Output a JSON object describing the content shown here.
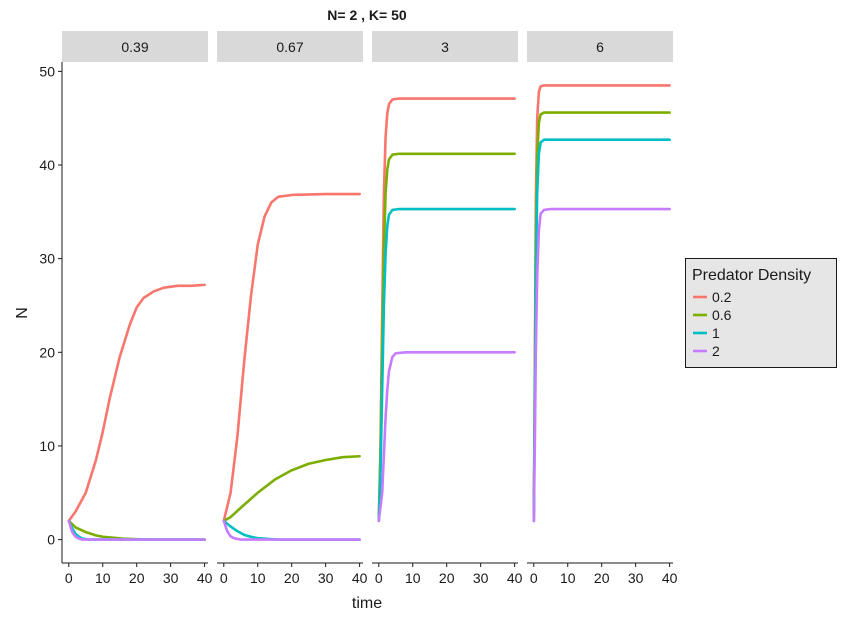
{
  "chart_data": {
    "type": "line",
    "title": "N= 2 , K= 50",
    "xlabel": "time",
    "ylabel": "N",
    "xlim": [
      -2,
      41
    ],
    "ylim": [
      -2.5,
      51
    ],
    "x_ticks": [
      0,
      10,
      20,
      30,
      40
    ],
    "y_ticks": [
      0,
      10,
      20,
      30,
      40,
      50
    ],
    "grid": false,
    "legend": {
      "title": "Predator Density",
      "placement": "right",
      "entries": [
        "0.2",
        "0.6",
        "1",
        "2"
      ]
    },
    "panels": [
      {
        "label": "0.39",
        "series": [
          {
            "name": "0.2",
            "color": "#F8766D",
            "points": [
              [
                0,
                2
              ],
              [
                2,
                3
              ],
              [
                5,
                5
              ],
              [
                8,
                8.5
              ],
              [
                10,
                11.5
              ],
              [
                12,
                15
              ],
              [
                15,
                19.5
              ],
              [
                18,
                23
              ],
              [
                20,
                24.8
              ],
              [
                22,
                25.8
              ],
              [
                25,
                26.5
              ],
              [
                28,
                26.9
              ],
              [
                32,
                27.1
              ],
              [
                36,
                27.1
              ],
              [
                40,
                27.2
              ]
            ]
          },
          {
            "name": "0.6",
            "color": "#7CAE00",
            "points": [
              [
                0,
                2
              ],
              [
                2,
                1.3
              ],
              [
                5,
                0.8
              ],
              [
                8,
                0.45
              ],
              [
                10,
                0.3
              ],
              [
                13,
                0.2
              ],
              [
                16,
                0.1
              ],
              [
                20,
                0.05
              ],
              [
                24,
                0
              ],
              [
                40,
                0
              ]
            ]
          },
          {
            "name": "1",
            "color": "#00BFC4",
            "points": [
              [
                0,
                2
              ],
              [
                1,
                1.2
              ],
              [
                2,
                0.6
              ],
              [
                3,
                0.3
              ],
              [
                4,
                0.1
              ],
              [
                6,
                0
              ],
              [
                40,
                0
              ]
            ]
          },
          {
            "name": "2",
            "color": "#C77CFF",
            "points": [
              [
                0,
                2
              ],
              [
                1,
                0.8
              ],
              [
                2,
                0.3
              ],
              [
                3,
                0.1
              ],
              [
                4,
                0
              ],
              [
                40,
                0
              ]
            ]
          }
        ]
      },
      {
        "label": "0.67",
        "series": [
          {
            "name": "0.2",
            "color": "#F8766D",
            "points": [
              [
                0,
                2
              ],
              [
                2,
                5
              ],
              [
                4,
                11
              ],
              [
                6,
                19
              ],
              [
                8,
                26
              ],
              [
                10,
                31.5
              ],
              [
                12,
                34.5
              ],
              [
                14,
                36
              ],
              [
                16,
                36.6
              ],
              [
                20,
                36.8
              ],
              [
                30,
                36.9
              ],
              [
                40,
                36.9
              ]
            ]
          },
          {
            "name": "0.6",
            "color": "#7CAE00",
            "points": [
              [
                0,
                2
              ],
              [
                2,
                2.4
              ],
              [
                5,
                3.4
              ],
              [
                10,
                5
              ],
              [
                15,
                6.4
              ],
              [
                20,
                7.4
              ],
              [
                25,
                8.1
              ],
              [
                30,
                8.5
              ],
              [
                35,
                8.8
              ],
              [
                40,
                8.9
              ]
            ]
          },
          {
            "name": "1",
            "color": "#00BFC4",
            "points": [
              [
                0,
                2
              ],
              [
                2,
                1.4
              ],
              [
                4,
                0.9
              ],
              [
                6,
                0.5
              ],
              [
                8,
                0.3
              ],
              [
                10,
                0.15
              ],
              [
                14,
                0.05
              ],
              [
                16,
                0
              ],
              [
                40,
                0
              ]
            ]
          },
          {
            "name": "2",
            "color": "#C77CFF",
            "points": [
              [
                0,
                2
              ],
              [
                1,
                0.9
              ],
              [
                2,
                0.35
              ],
              [
                3,
                0.15
              ],
              [
                5,
                0
              ],
              [
                40,
                0
              ]
            ]
          }
        ]
      },
      {
        "label": "3",
        "series": [
          {
            "name": "0.2",
            "color": "#F8766D",
            "points": [
              [
                0,
                2
              ],
              [
                0.5,
                10
              ],
              [
                1,
                24
              ],
              [
                1.5,
                37
              ],
              [
                2,
                43
              ],
              [
                2.5,
                45.5
              ],
              [
                3,
                46.5
              ],
              [
                4,
                47
              ],
              [
                6,
                47.1
              ],
              [
                20,
                47.1
              ],
              [
                40,
                47.1
              ]
            ]
          },
          {
            "name": "0.6",
            "color": "#7CAE00",
            "points": [
              [
                0,
                2
              ],
              [
                0.5,
                9
              ],
              [
                1,
                21
              ],
              [
                1.5,
                31
              ],
              [
                2,
                37
              ],
              [
                2.5,
                39.5
              ],
              [
                3,
                40.6
              ],
              [
                4,
                41.1
              ],
              [
                6,
                41.2
              ],
              [
                20,
                41.2
              ],
              [
                40,
                41.2
              ]
            ]
          },
          {
            "name": "1",
            "color": "#00BFC4",
            "points": [
              [
                0,
                2
              ],
              [
                0.5,
                7
              ],
              [
                1,
                16
              ],
              [
                1.5,
                25
              ],
              [
                2,
                30.5
              ],
              [
                2.5,
                33.5
              ],
              [
                3,
                34.7
              ],
              [
                4,
                35.2
              ],
              [
                6,
                35.3
              ],
              [
                20,
                35.3
              ],
              [
                40,
                35.3
              ]
            ]
          },
          {
            "name": "2",
            "color": "#C77CFF",
            "points": [
              [
                0,
                2
              ],
              [
                1,
                5
              ],
              [
                1.5,
                9
              ],
              [
                2,
                13
              ],
              [
                2.5,
                16
              ],
              [
                3,
                18
              ],
              [
                4,
                19.5
              ],
              [
                5,
                19.9
              ],
              [
                8,
                20
              ],
              [
                20,
                20
              ],
              [
                40,
                20
              ]
            ]
          }
        ]
      },
      {
        "label": "6",
        "series": [
          {
            "name": "0.2",
            "color": "#F8766D",
            "points": [
              [
                0,
                2
              ],
              [
                0.3,
                18
              ],
              [
                0.6,
                36
              ],
              [
                1,
                45
              ],
              [
                1.5,
                47.8
              ],
              [
                2,
                48.4
              ],
              [
                3,
                48.5
              ],
              [
                10,
                48.5
              ],
              [
                40,
                48.5
              ]
            ]
          },
          {
            "name": "0.6",
            "color": "#7CAE00",
            "points": [
              [
                0,
                2
              ],
              [
                0.3,
                16
              ],
              [
                0.6,
                32
              ],
              [
                1,
                41
              ],
              [
                1.5,
                44.5
              ],
              [
                2,
                45.4
              ],
              [
                3,
                45.6
              ],
              [
                10,
                45.6
              ],
              [
                40,
                45.6
              ]
            ]
          },
          {
            "name": "1",
            "color": "#00BFC4",
            "points": [
              [
                0,
                2
              ],
              [
                0.3,
                14
              ],
              [
                0.6,
                28
              ],
              [
                1,
                37
              ],
              [
                1.5,
                41.2
              ],
              [
                2,
                42.4
              ],
              [
                3,
                42.7
              ],
              [
                10,
                42.7
              ],
              [
                40,
                42.7
              ]
            ]
          },
          {
            "name": "2",
            "color": "#C77CFF",
            "points": [
              [
                0,
                2
              ],
              [
                0.3,
                10
              ],
              [
                0.6,
                20
              ],
              [
                1,
                28
              ],
              [
                1.5,
                33
              ],
              [
                2,
                34.8
              ],
              [
                3,
                35.2
              ],
              [
                5,
                35.3
              ],
              [
                40,
                35.3
              ]
            ]
          }
        ]
      }
    ]
  }
}
